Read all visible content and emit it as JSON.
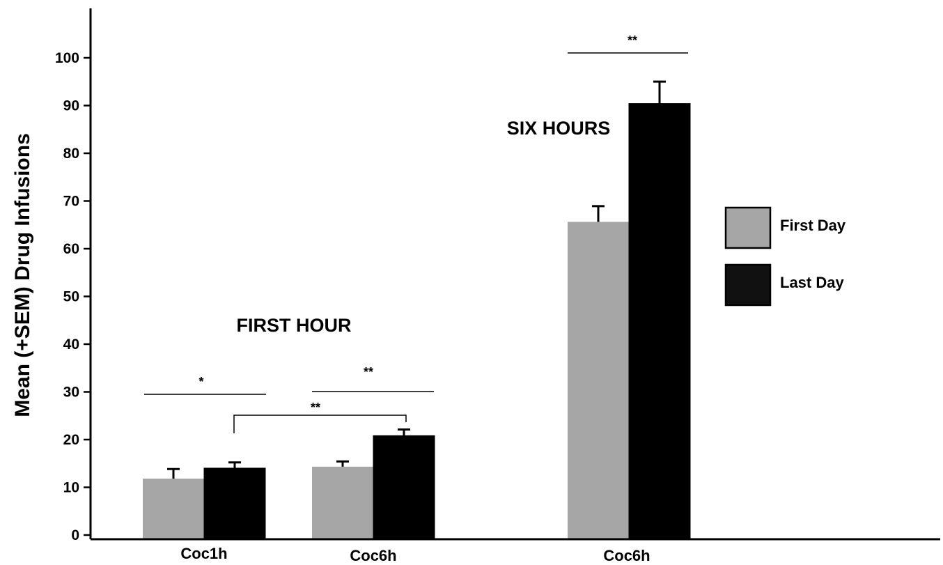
{
  "chart_data": {
    "type": "bar",
    "ylabel": "Mean (+SEM) Drug Infusions",
    "xlabel": "",
    "ylim": [
      0,
      100
    ],
    "y_ticks": [
      0,
      10,
      20,
      30,
      40,
      50,
      60,
      70,
      80,
      90,
      100
    ],
    "categories": [
      "Coc1h",
      "Coc6h",
      "Coc6h"
    ],
    "series": [
      {
        "name": "First Day",
        "color": "#a6a6a6",
        "values": [
          12.7,
          15.2,
          66.5
        ],
        "sem": [
          2.0,
          1.1,
          3.3
        ]
      },
      {
        "name": "Last Day",
        "color": "#000000",
        "values": [
          14.9,
          21.7,
          91.3
        ],
        "sem": [
          1.2,
          1.3,
          4.6
        ]
      }
    ],
    "group_labels": [
      "FIRST HOUR",
      "SIX HOURS"
    ],
    "significance": [
      {
        "label": "*",
        "y": 29,
        "between": "Coc1h First Day vs Last Day"
      },
      {
        "label": "**",
        "y": 29.5,
        "between": "Coc6h First Day vs Last Day (first hour)"
      },
      {
        "label": "**",
        "y": 25,
        "between": "Coc1h Last Day vs Coc6h Last Day"
      },
      {
        "label": "**",
        "y": 100.5,
        "between": "Coc6h First Day vs Last Day (six hours)"
      }
    ],
    "legend": {
      "placement": "right",
      "entries": [
        "First Day",
        "Last Day"
      ]
    },
    "grid": false
  }
}
